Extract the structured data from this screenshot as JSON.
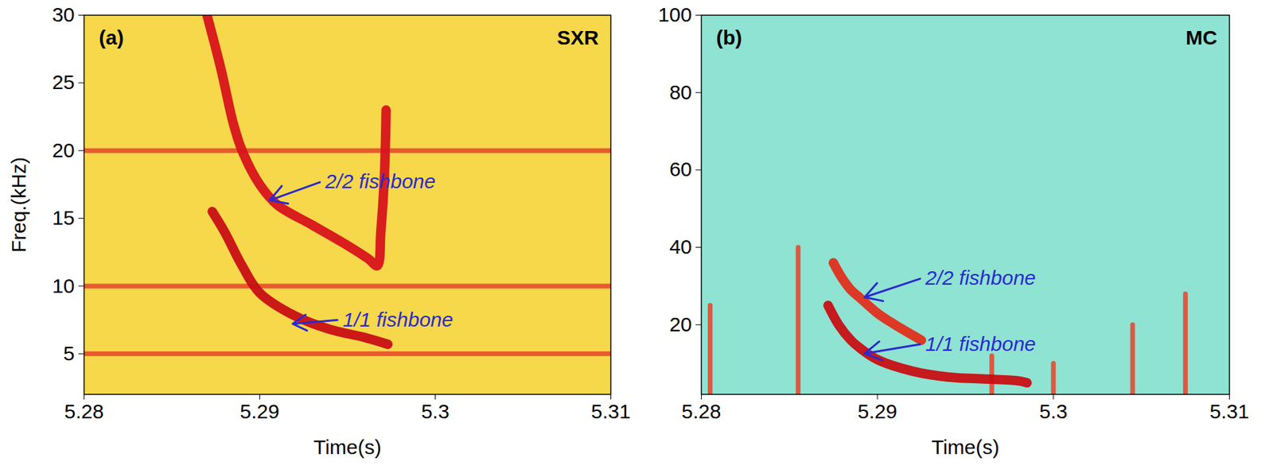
{
  "chart_data": [
    {
      "type": "line",
      "label": "(a)",
      "title": "SXR",
      "x_label": "Time(s)",
      "y_label": "Freq.(kHz)",
      "xlim": [
        5.28,
        5.31
      ],
      "xticks": [
        5.28,
        5.29,
        5.3,
        5.31
      ],
      "ylim": [
        2,
        30
      ],
      "yticks": [
        5,
        10,
        15,
        20,
        25,
        30
      ],
      "series": [
        {
          "color": "#e8432a",
          "x": [
            5.28,
            5.31
          ],
          "values": [
            5,
            5
          ]
        },
        {
          "color": "#e8432a",
          "x": [
            5.28,
            5.31
          ],
          "values": [
            10,
            10
          ]
        },
        {
          "color": "#e8432a",
          "x": [
            5.28,
            5.31
          ],
          "values": [
            20,
            20
          ]
        },
        {
          "name": "2/2 fishbone",
          "color": "#d7141a",
          "x": [
            5.287,
            5.2878,
            5.2885,
            5.289,
            5.29,
            5.291,
            5.293,
            5.295,
            5.2962,
            5.2967,
            5.2969,
            5.2971,
            5.2972
          ],
          "values": [
            30,
            26,
            22,
            20,
            17.5,
            16,
            14.5,
            13,
            12,
            11.5,
            14,
            18,
            23
          ]
        },
        {
          "name": "1/1 fishbone",
          "color": "#c80f14",
          "x": [
            5.2873,
            5.288,
            5.289,
            5.29,
            5.292,
            5.294,
            5.296,
            5.2973
          ],
          "values": [
            15.5,
            14,
            11.5,
            9.5,
            7.8,
            6.8,
            6.2,
            5.7
          ]
        }
      ],
      "annotations": [
        {
          "text": "2/2 fishbone",
          "x": 5.2935,
          "y": 17.7,
          "arrow_x": 5.2905,
          "arrow_y": 16.3
        },
        {
          "text": "1/1 fishbone",
          "x": 5.2945,
          "y": 7.5,
          "arrow_x": 5.2918,
          "arrow_y": 7.2
        }
      ]
    },
    {
      "type": "line",
      "label": "(b)",
      "title": "MC",
      "x_label": "Time(s)",
      "xlim": [
        5.28,
        5.31
      ],
      "xticks": [
        5.28,
        5.29,
        5.3,
        5.31
      ],
      "ylim": [
        2,
        100
      ],
      "yticks": [
        20,
        40,
        60,
        80,
        100
      ],
      "series": [
        {
          "color": "#e8432a",
          "x": [
            5.2805,
            5.2805
          ],
          "values": [
            2,
            25
          ]
        },
        {
          "color": "#e8432a",
          "x": [
            5.2855,
            5.2855
          ],
          "values": [
            2,
            40
          ]
        },
        {
          "color": "#e8432a",
          "x": [
            5.2965,
            5.2965
          ],
          "values": [
            2,
            12
          ]
        },
        {
          "color": "#e8432a",
          "x": [
            5.3,
            5.3
          ],
          "values": [
            2,
            10
          ]
        },
        {
          "color": "#e8432a",
          "x": [
            5.3045,
            5.3045
          ],
          "values": [
            2,
            20
          ]
        },
        {
          "color": "#e8432a",
          "x": [
            5.3075,
            5.3075
          ],
          "values": [
            2,
            28
          ]
        },
        {
          "name": "2/2 fishbone",
          "color": "#e0301c",
          "x": [
            5.2875,
            5.288,
            5.2885,
            5.289,
            5.29,
            5.291,
            5.2925
          ],
          "values": [
            36,
            32,
            29,
            27,
            23,
            20,
            16
          ]
        },
        {
          "name": "1/1 fishbone",
          "color": "#c80f14",
          "x": [
            5.2872,
            5.2878,
            5.2885,
            5.289,
            5.29,
            5.292,
            5.294,
            5.296,
            5.298,
            5.2985
          ],
          "values": [
            25,
            20,
            16,
            14,
            11,
            8,
            6.5,
            6,
            5.5,
            5
          ]
        }
      ],
      "annotations": [
        {
          "text": "2/2 fishbone",
          "x": 5.2925,
          "y": 32,
          "arrow_x": 5.2892,
          "arrow_y": 27
        },
        {
          "text": "1/1 fishbone",
          "x": 5.2925,
          "y": 15,
          "arrow_x": 5.2892,
          "arrow_y": 12.5
        }
      ]
    }
  ]
}
